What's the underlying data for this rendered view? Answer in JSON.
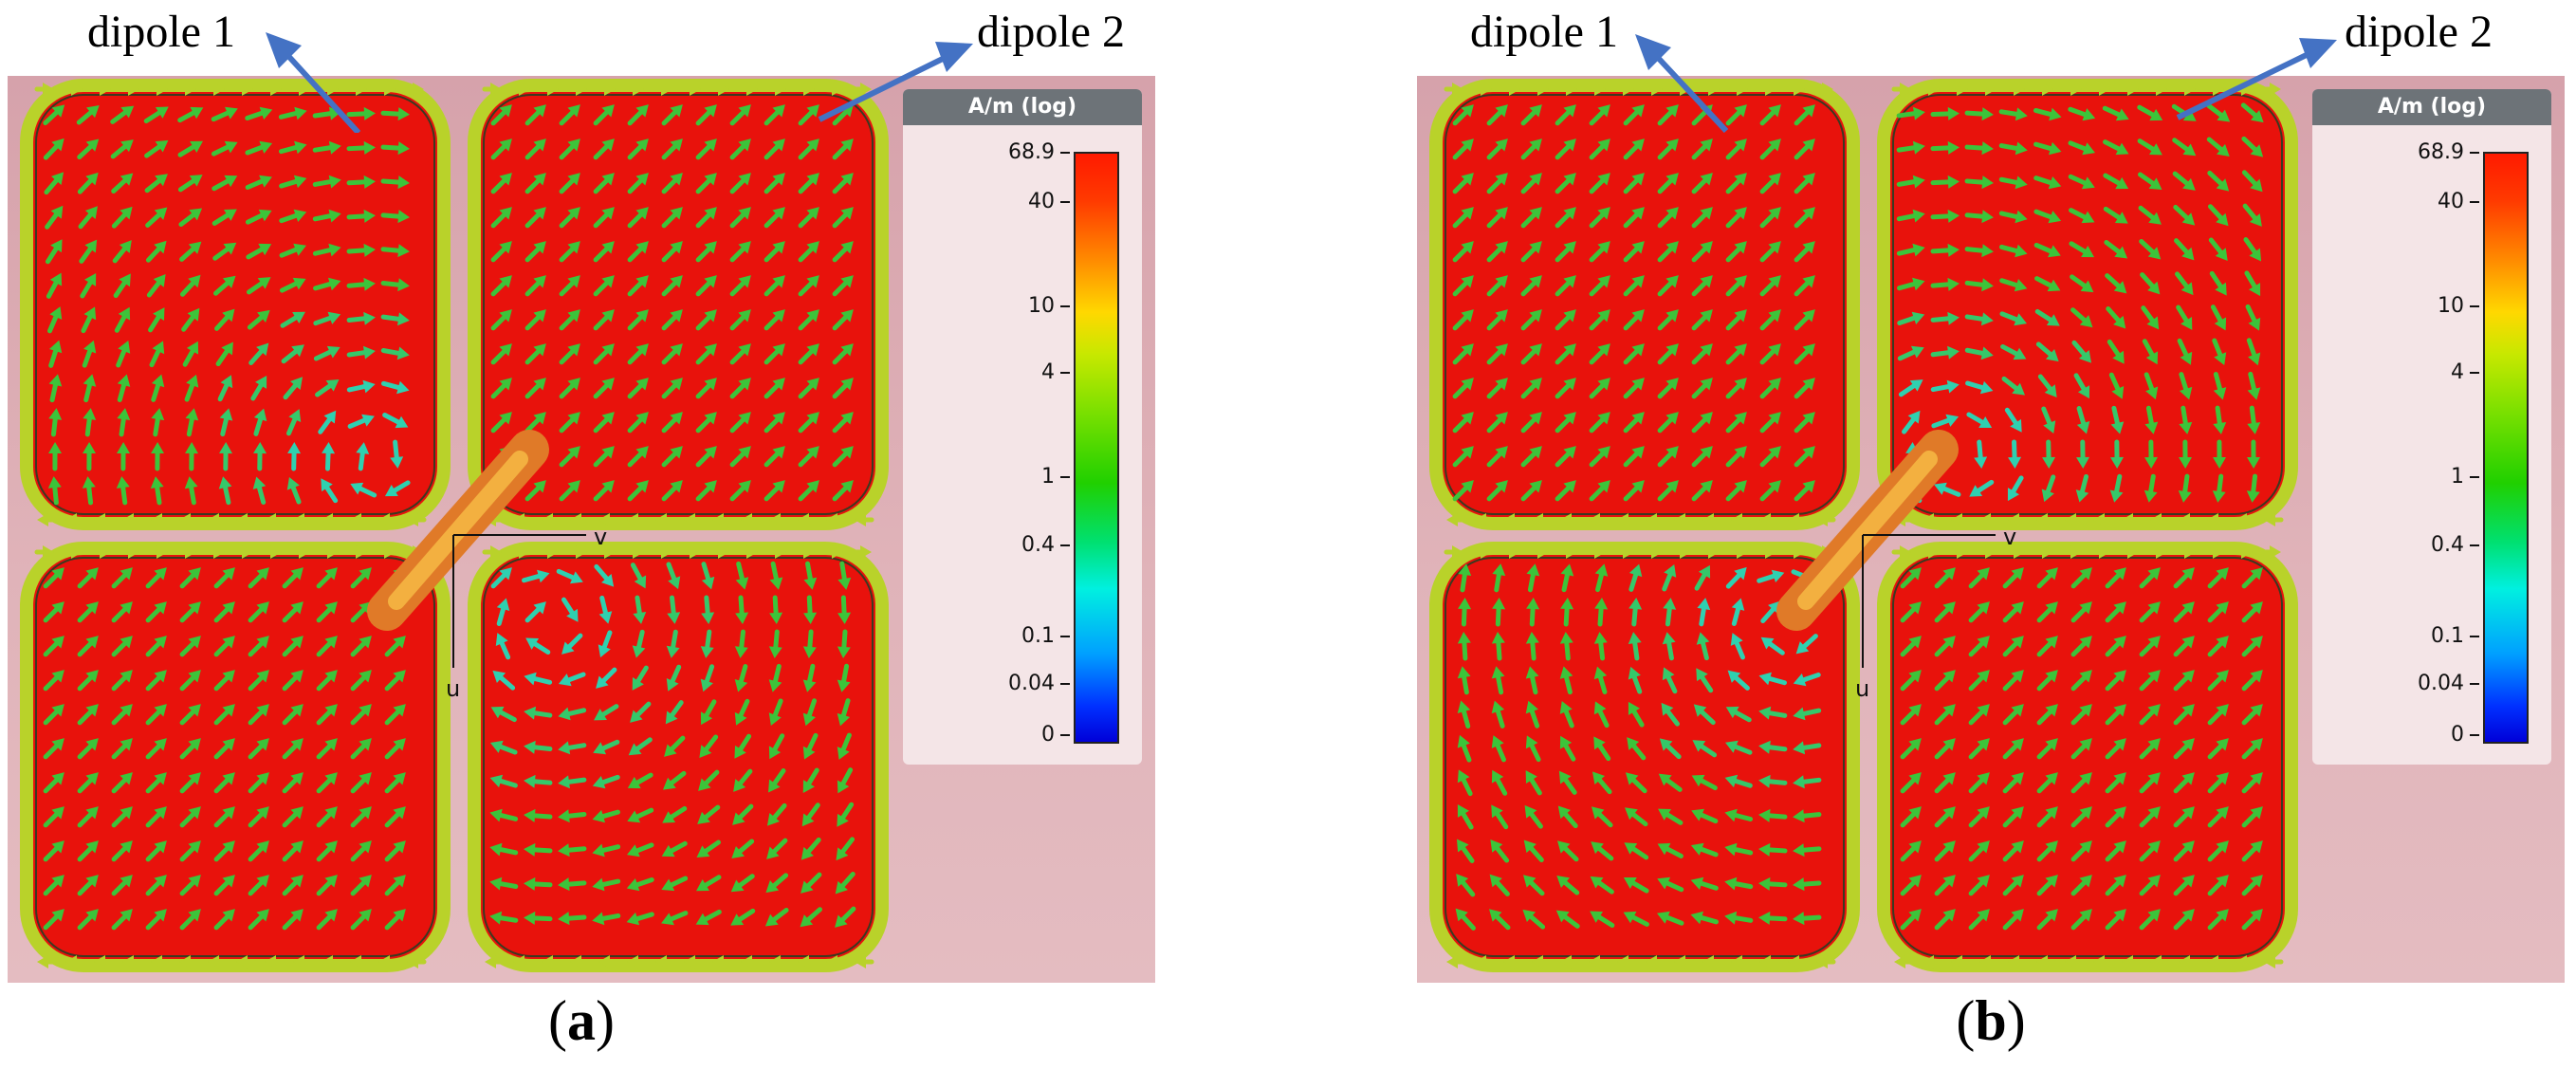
{
  "panels": [
    {
      "id": "a",
      "label": "a",
      "dipole_labels": [
        "dipole 1",
        "dipole 2"
      ],
      "axis_labels": {
        "v": "v",
        "u": "u"
      },
      "legend": {
        "title": "A/m (log)",
        "ticks": [
          "68.9",
          "40",
          "10",
          "4",
          "1",
          "0.4",
          "0.1",
          "0.04",
          "0"
        ]
      },
      "vortex_locations": [
        "top-left patch",
        "bottom-right patch"
      ]
    },
    {
      "id": "b",
      "label": "b",
      "dipole_labels": [
        "dipole 1",
        "dipole 2"
      ],
      "axis_labels": {
        "v": "v",
        "u": "u"
      },
      "legend": {
        "title": "A/m (log)",
        "ticks": [
          "68.9",
          "40",
          "10",
          "4",
          "1",
          "0.4",
          "0.1",
          "0.04",
          "0"
        ]
      },
      "vortex_locations": [
        "top-right patch",
        "bottom-left patch"
      ]
    }
  ],
  "colors": {
    "background": "#d8a7af",
    "patch_fill": "#e8120c",
    "arrow_main": "#3cc43a",
    "arrow_edge": "#b9d22a",
    "callout_arrow": "#4472c4"
  }
}
